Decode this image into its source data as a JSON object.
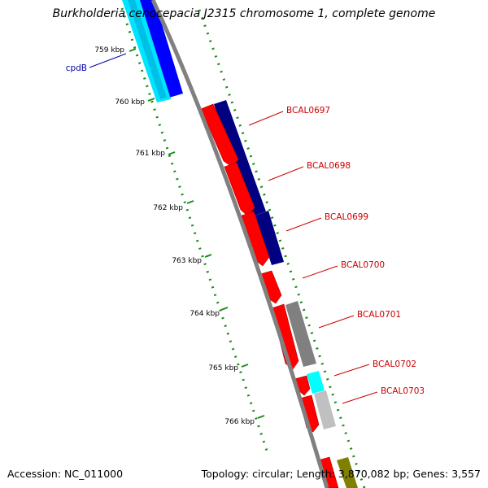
{
  "title": "Burkholderia cenocepacia J2315 chromosome 1, complete genome",
  "footer": {
    "accession": "Accession: NC_011000",
    "stats": "Topology: circular; Length: 3,870,082 bp; Genes: 3,557"
  },
  "colors": {
    "backbone": "#808080",
    "gc_dots": "#1a8c1a",
    "label_red": "#cc0000",
    "label_blue": "#0000aa"
  },
  "tick_labels": [
    "759 kbp",
    "760 kbp",
    "761 kbp",
    "762 kbp",
    "763 kbp",
    "764 kbp",
    "765 kbp",
    "766 kbp"
  ],
  "gene_labels": [
    {
      "text": "cpdB",
      "color": "#0000aa"
    },
    {
      "text": "BCAL0697",
      "color": "#cc0000"
    },
    {
      "text": "BCAL0698",
      "color": "#cc0000"
    },
    {
      "text": "BCAL0699",
      "color": "#cc0000"
    },
    {
      "text": "BCAL0700",
      "color": "#cc0000"
    },
    {
      "text": "BCAL0701",
      "color": "#cc0000"
    },
    {
      "text": "BCAL0702",
      "color": "#cc0000"
    },
    {
      "text": "BCAL0703",
      "color": "#cc0000"
    }
  ],
  "features": {
    "cds": [
      {
        "color": "#ff0000"
      },
      {
        "color": "#ff0000"
      },
      {
        "color": "#ff0000"
      },
      {
        "color": "#ff0000"
      },
      {
        "color": "#ff0000"
      },
      {
        "color": "#ff0000"
      },
      {
        "color": "#ff0000"
      },
      {
        "color": "#ff0000"
      }
    ],
    "cog": [
      {
        "color": "#0000ff"
      },
      {
        "color": "#000080"
      },
      {
        "color": "#000080"
      },
      {
        "color": "#808080"
      },
      {
        "color": "#00ffff"
      },
      {
        "color": "#c0c0c0"
      },
      {
        "color": "#808000"
      }
    ]
  }
}
